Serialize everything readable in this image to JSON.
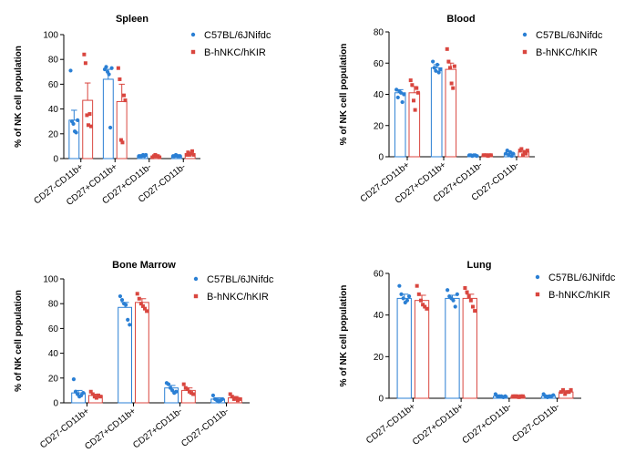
{
  "colors": {
    "series1": "#2a7fd4",
    "series2": "#d9463f"
  },
  "chart_data": [
    {
      "type": "bar",
      "title": "Spleen",
      "ylabel": "% of NK cell population",
      "ylim": [
        0,
        100
      ],
      "yticks": [
        0,
        20,
        40,
        60,
        80,
        100
      ],
      "categories": [
        "CD27-CD11b+",
        "CD27+CD11b+",
        "CD27+CD11b-",
        "CD27-CD11b-"
      ],
      "legend_position": "top-right",
      "series": [
        {
          "name": "C57BL/6JNifdc",
          "values": [
            31,
            64,
            2,
            2
          ],
          "errors": [
            8,
            8,
            0.5,
            0.5
          ],
          "points": [
            [
              71,
              30,
              28,
              22,
              21,
              31
            ],
            [
              72,
              74,
              70,
              68,
              25,
              73
            ],
            [
              2,
              2,
              2,
              3,
              2,
              3
            ],
            [
              2,
              2,
              3,
              2,
              2,
              2
            ]
          ]
        },
        {
          "name": "B-hNKC/hKIR",
          "values": [
            47,
            46,
            2,
            4
          ],
          "errors": [
            14,
            14,
            0.5,
            1
          ],
          "points": [
            [
              84,
              77,
              35,
              27,
              36,
              26
            ],
            [
              73,
              64,
              15,
              13,
              51,
              47
            ],
            [
              1,
              2,
              3,
              2,
              2,
              1
            ],
            [
              3,
              5,
              3,
              4,
              6,
              3
            ]
          ]
        }
      ]
    },
    {
      "type": "bar",
      "title": "Blood",
      "ylabel": "% of NK cell population",
      "ylim": [
        0,
        80
      ],
      "yticks": [
        0,
        20,
        40,
        60,
        80
      ],
      "categories": [
        "CD27-CD11b+",
        "CD27+CD11b+",
        "CD27+CD11b-",
        "CD27-CD11b-"
      ],
      "legend_position": "top-right",
      "series": [
        {
          "name": "C57BL/6JNifdc",
          "values": [
            41,
            57,
            1,
            2
          ],
          "errors": [
            2,
            2,
            0.3,
            1
          ],
          "points": [
            [
              43,
              38,
              42,
              41,
              35,
              40
            ],
            [
              61,
              57,
              55,
              59,
              54,
              56
            ],
            [
              1,
              1,
              0.5,
              1,
              1,
              0.5
            ],
            [
              2,
              4,
              1,
              3,
              0.5,
              2
            ]
          ]
        },
        {
          "name": "B-hNKC/hKIR",
          "values": [
            41,
            56,
            1,
            3
          ],
          "errors": [
            4,
            4,
            0.3,
            1
          ],
          "points": [
            [
              49,
              46,
              36,
              30,
              44,
              41
            ],
            [
              69,
              61,
              57,
              47,
              44,
              58
            ],
            [
              1,
              1,
              1,
              0.5,
              1,
              1
            ],
            [
              4,
              5,
              1,
              3,
              2,
              4
            ]
          ]
        }
      ]
    },
    {
      "type": "bar",
      "title": "Bone Marrow",
      "ylabel": "% of NK cell population",
      "ylim": [
        0,
        100
      ],
      "yticks": [
        0,
        20,
        40,
        60,
        80,
        100
      ],
      "categories": [
        "CD27-CD11b+",
        "CD27+CD11b+",
        "CD27+CD11b-",
        "CD27-CD11b-"
      ],
      "legend_position": "top-right",
      "series": [
        {
          "name": "C57BL/6JNifdc",
          "values": [
            8,
            77,
            12,
            3
          ],
          "errors": [
            2,
            4,
            2,
            1
          ],
          "points": [
            [
              19,
              9,
              7,
              5,
              6,
              8
            ],
            [
              86,
              83,
              80,
              79,
              67,
              63
            ],
            [
              16,
              15,
              12,
              10,
              8,
              9
            ],
            [
              6,
              3,
              2,
              1,
              2,
              3
            ]
          ]
        },
        {
          "name": "B-hNKC/hKIR",
          "values": [
            6,
            81,
            10,
            4
          ],
          "errors": [
            1,
            3,
            2,
            1
          ],
          "points": [
            [
              9,
              7,
              5,
              4,
              6,
              5
            ],
            [
              88,
              84,
              80,
              78,
              76,
              74
            ],
            [
              15,
              12,
              11,
              9,
              8,
              7
            ],
            [
              7,
              5,
              3,
              4,
              2,
              3
            ]
          ]
        }
      ]
    },
    {
      "type": "bar",
      "title": "Lung",
      "ylabel": "% of NK cell population",
      "ylim": [
        0,
        60
      ],
      "yticks": [
        0,
        20,
        40,
        60
      ],
      "categories": [
        "CD27-CD11b+",
        "CD27+CD11b+",
        "CD27+CD11b-",
        "CD27-CD11b-"
      ],
      "legend_position": "top-right",
      "series": [
        {
          "name": "C57BL/6JNifdc",
          "values": [
            48,
            48,
            1,
            1
          ],
          "errors": [
            2,
            1.5,
            0.3,
            0.5
          ],
          "points": [
            [
              54,
              50,
              48,
              46,
              47,
              49
            ],
            [
              52,
              49,
              48,
              47,
              44,
              50
            ],
            [
              2,
              1,
              1,
              1,
              0.5,
              1
            ],
            [
              2,
              1,
              0.5,
              1,
              1,
              1.5
            ]
          ]
        },
        {
          "name": "B-hNKC/hKIR",
          "values": [
            47,
            48,
            1,
            3
          ],
          "errors": [
            2.5,
            2,
            0.3,
            0.5
          ],
          "points": [
            [
              54,
              50,
              47,
              45,
              44,
              43
            ],
            [
              53,
              51,
              49,
              47,
              44,
              42
            ],
            [
              1,
              1,
              1,
              0.5,
              1,
              1
            ],
            [
              3,
              4,
              2,
              3,
              3,
              4
            ]
          ]
        }
      ]
    }
  ]
}
